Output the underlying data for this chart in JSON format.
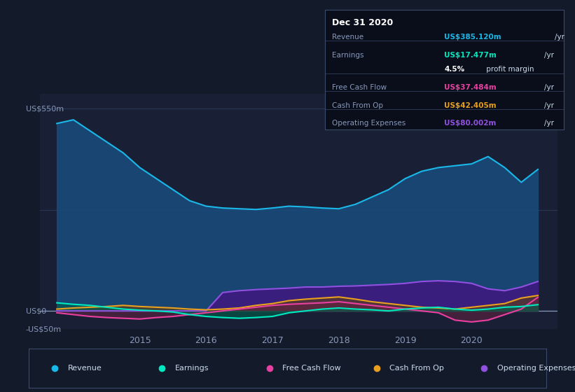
{
  "bg_color": "#131a2a",
  "plot_bg_color": "#192035",
  "grid_color": "#2a3a55",
  "ylabel_top": "US$550m",
  "ylabel_zero": "US$0",
  "ylabel_neg": "-US$50m",
  "ylim": [
    -50,
    590
  ],
  "xlim": [
    2013.5,
    2021.3
  ],
  "xtick_labels": [
    "2015",
    "2016",
    "2017",
    "2018",
    "2019",
    "2020"
  ],
  "xtick_positions": [
    2015,
    2016,
    2017,
    2018,
    2019,
    2020
  ],
  "series": {
    "Revenue": {
      "color": "#1ab8e8",
      "fill_color": "#1a4a7a",
      "x": [
        2013.75,
        2014.0,
        2014.25,
        2014.5,
        2014.75,
        2015.0,
        2015.25,
        2015.5,
        2015.75,
        2016.0,
        2016.25,
        2016.5,
        2016.75,
        2017.0,
        2017.25,
        2017.5,
        2017.75,
        2018.0,
        2018.25,
        2018.5,
        2018.75,
        2019.0,
        2019.25,
        2019.5,
        2019.75,
        2020.0,
        2020.25,
        2020.5,
        2020.75,
        2021.0
      ],
      "y": [
        510,
        520,
        490,
        460,
        430,
        390,
        360,
        330,
        300,
        285,
        280,
        278,
        276,
        280,
        285,
        283,
        280,
        278,
        290,
        310,
        330,
        360,
        380,
        390,
        395,
        400,
        420,
        390,
        350,
        385
      ]
    },
    "Earnings": {
      "color": "#00e8c0",
      "fill_color": "#00604a",
      "x": [
        2013.75,
        2014.0,
        2014.25,
        2014.5,
        2014.75,
        2015.0,
        2015.25,
        2015.5,
        2015.75,
        2016.0,
        2016.25,
        2016.5,
        2016.75,
        2017.0,
        2017.25,
        2017.5,
        2017.75,
        2018.0,
        2018.25,
        2018.5,
        2018.75,
        2019.0,
        2019.25,
        2019.5,
        2019.75,
        2020.0,
        2020.25,
        2020.5,
        2020.75,
        2021.0
      ],
      "y": [
        22,
        18,
        15,
        10,
        5,
        2,
        0,
        -3,
        -10,
        -15,
        -18,
        -20,
        -18,
        -15,
        -5,
        0,
        5,
        8,
        5,
        3,
        0,
        5,
        8,
        10,
        5,
        2,
        5,
        10,
        12,
        17
      ]
    },
    "FreeCashFlow": {
      "color": "#e840a0",
      "fill_color": "#602040",
      "x": [
        2013.75,
        2014.0,
        2014.25,
        2014.5,
        2014.75,
        2015.0,
        2015.25,
        2015.5,
        2015.75,
        2016.0,
        2016.25,
        2016.5,
        2016.75,
        2017.0,
        2017.25,
        2017.5,
        2017.75,
        2018.0,
        2018.25,
        2018.5,
        2018.75,
        2019.0,
        2019.25,
        2019.5,
        2019.75,
        2020.0,
        2020.25,
        2020.5,
        2020.75,
        2021.0
      ],
      "y": [
        -5,
        -10,
        -15,
        -18,
        -20,
        -22,
        -18,
        -15,
        -10,
        -5,
        0,
        5,
        10,
        15,
        18,
        20,
        22,
        25,
        20,
        15,
        10,
        5,
        0,
        -5,
        -25,
        -30,
        -25,
        -10,
        5,
        37
      ]
    },
    "CashFromOp": {
      "color": "#e8a020",
      "fill_color": "#604010",
      "x": [
        2013.75,
        2014.0,
        2014.25,
        2014.5,
        2014.75,
        2015.0,
        2015.25,
        2015.5,
        2015.75,
        2016.0,
        2016.25,
        2016.5,
        2016.75,
        2017.0,
        2017.25,
        2017.5,
        2017.75,
        2018.0,
        2018.25,
        2018.5,
        2018.75,
        2019.0,
        2019.25,
        2019.5,
        2019.75,
        2020.0,
        2020.25,
        2020.5,
        2020.75,
        2021.0
      ],
      "y": [
        5,
        8,
        10,
        12,
        15,
        12,
        10,
        8,
        5,
        3,
        5,
        8,
        15,
        20,
        28,
        32,
        35,
        38,
        32,
        25,
        20,
        15,
        10,
        8,
        5,
        10,
        15,
        20,
        35,
        42
      ]
    },
    "OperatingExpenses": {
      "color": "#9050e0",
      "fill_color": "#401880",
      "x": [
        2013.75,
        2014.0,
        2014.25,
        2014.5,
        2014.75,
        2015.0,
        2015.25,
        2015.5,
        2015.75,
        2016.0,
        2016.25,
        2016.5,
        2016.75,
        2017.0,
        2017.25,
        2017.5,
        2017.75,
        2018.0,
        2018.25,
        2018.5,
        2018.75,
        2019.0,
        2019.25,
        2019.5,
        2019.75,
        2020.0,
        2020.25,
        2020.5,
        2020.75,
        2021.0
      ],
      "y": [
        0,
        0,
        0,
        0,
        0,
        0,
        0,
        0,
        0,
        0,
        50,
        55,
        58,
        60,
        62,
        65,
        65,
        67,
        68,
        70,
        72,
        75,
        80,
        82,
        80,
        75,
        60,
        55,
        65,
        80
      ]
    }
  },
  "info_box": {
    "title": "Dec 31 2020",
    "display_rows": [
      {
        "label": "Revenue",
        "value": "US$385.120m",
        "unit": "/yr",
        "color": "#1ab8e8",
        "divider": false
      },
      {
        "label": "Earnings",
        "value": "US$17.477m",
        "unit": "/yr",
        "color": "#00e8c0",
        "divider": true
      },
      {
        "label": "",
        "value": "4.5%",
        "unit": " profit margin",
        "color": "#ffffff",
        "divider": false
      },
      {
        "label": "Free Cash Flow",
        "value": "US$37.484m",
        "unit": "/yr",
        "color": "#e840a0",
        "divider": true
      },
      {
        "label": "Cash From Op",
        "value": "US$42.405m",
        "unit": "/yr",
        "color": "#e8a020",
        "divider": true
      },
      {
        "label": "Operating Expenses",
        "value": "US$80.002m",
        "unit": "/yr",
        "color": "#9050e0",
        "divider": true
      }
    ]
  },
  "legend_items": [
    {
      "label": "Revenue",
      "color": "#1ab8e8"
    },
    {
      "label": "Earnings",
      "color": "#00e8c0"
    },
    {
      "label": "Free Cash Flow",
      "color": "#e840a0"
    },
    {
      "label": "Cash From Op",
      "color": "#e8a020"
    },
    {
      "label": "Operating Expenses",
      "color": "#9050e0"
    }
  ]
}
